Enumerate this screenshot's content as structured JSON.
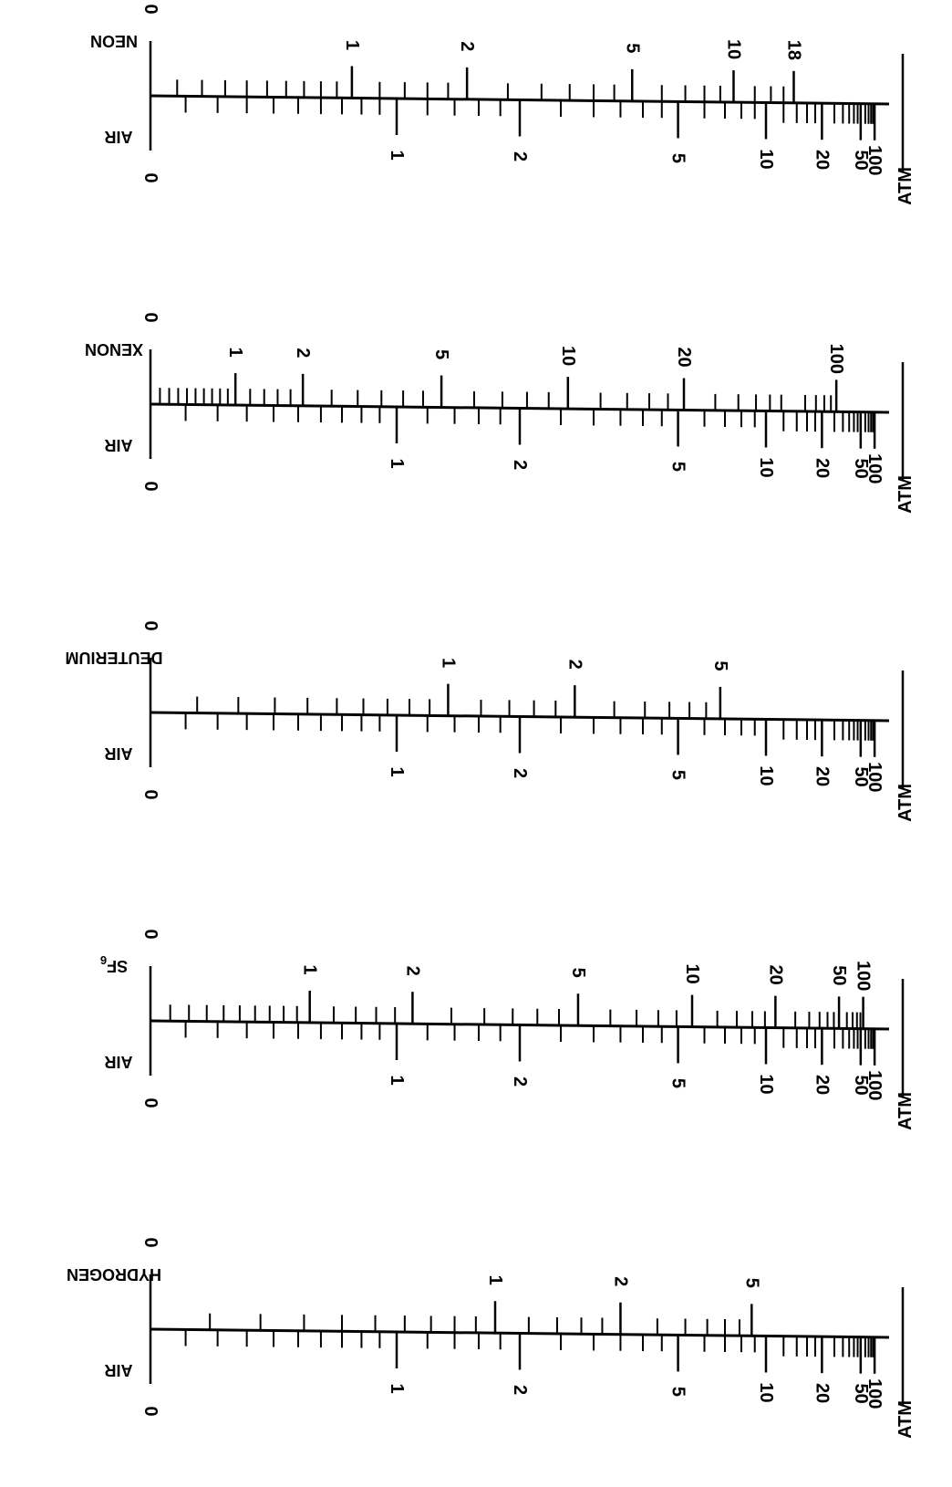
{
  "chart_data": {
    "type": "nomogram",
    "unit_label": "ATM",
    "reference_gas": "AIR",
    "reference_scale": [
      {
        "label": "0",
        "value": 0
      },
      {
        "label": "1",
        "value": 1
      },
      {
        "label": "2",
        "value": 2
      },
      {
        "label": "5",
        "value": 5
      },
      {
        "label": "10",
        "value": 10
      },
      {
        "label": "20",
        "value": 20
      },
      {
        "label": "50",
        "value": 50
      },
      {
        "label": "100",
        "value": 100
      }
    ],
    "scales": [
      {
        "gas": "NEON",
        "gas_subscript": "",
        "ticks": [
          {
            "label": "0",
            "value": 0
          },
          {
            "label": "1",
            "value": 1
          },
          {
            "label": "2",
            "value": 2
          },
          {
            "label": "5",
            "value": 5
          },
          {
            "label": "10",
            "value": 10
          },
          {
            "label": "18",
            "value": 18
          }
        ]
      },
      {
        "gas": "XENON",
        "gas_subscript": "",
        "ticks": [
          {
            "label": "0",
            "value": 0
          },
          {
            "label": "1",
            "value": 1
          },
          {
            "label": "2",
            "value": 2
          },
          {
            "label": "5",
            "value": 5
          },
          {
            "label": "10",
            "value": 10
          },
          {
            "label": "20",
            "value": 20
          },
          {
            "label": "100",
            "value": 100
          }
        ]
      },
      {
        "gas": "DEUTERIUM",
        "gas_subscript": "",
        "ticks": [
          {
            "label": "0",
            "value": 0
          },
          {
            "label": "1",
            "value": 1
          },
          {
            "label": "2",
            "value": 2
          },
          {
            "label": "5",
            "value": 5
          }
        ]
      },
      {
        "gas": "SF",
        "gas_subscript": "6",
        "ticks": [
          {
            "label": "0",
            "value": 0
          },
          {
            "label": "1",
            "value": 1
          },
          {
            "label": "2",
            "value": 2
          },
          {
            "label": "5",
            "value": 5
          },
          {
            "label": "10",
            "value": 10
          },
          {
            "label": "20",
            "value": 20
          },
          {
            "label": "50",
            "value": 50
          },
          {
            "label": "100",
            "value": 100
          }
        ]
      },
      {
        "gas": "HYDROGEN",
        "gas_subscript": "",
        "ticks": [
          {
            "label": "0",
            "value": 0
          },
          {
            "label": "1",
            "value": 1
          },
          {
            "label": "2",
            "value": 2
          },
          {
            "label": "5",
            "value": 5
          }
        ]
      }
    ]
  }
}
